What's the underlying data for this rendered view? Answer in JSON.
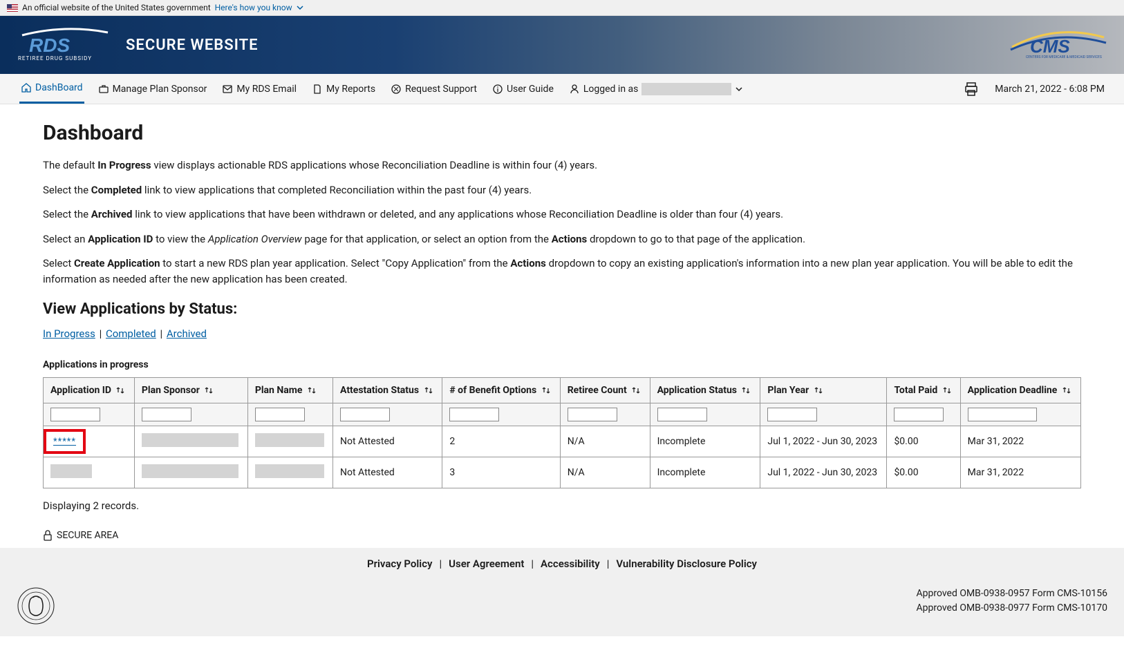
{
  "gov_banner": {
    "text": "An official website of the United States government",
    "link": "Here's how you know"
  },
  "header": {
    "logo_subtitle": "RETIREE DRUG SUBSIDY",
    "title": "SECURE WEBSITE"
  },
  "nav": {
    "items": [
      {
        "label": "DashBoard",
        "active": true
      },
      {
        "label": "Manage Plan Sponsor"
      },
      {
        "label": "My RDS Email"
      },
      {
        "label": "My Reports"
      },
      {
        "label": "Request Support"
      },
      {
        "label": "User Guide"
      }
    ],
    "logged_in_label": "Logged in as",
    "timestamp": "March 21, 2022 - 6:08 PM"
  },
  "dashboard": {
    "title": "Dashboard",
    "para1_a": "The default ",
    "para1_b": "In Progress",
    "para1_c": " view displays actionable RDS applications whose Reconciliation Deadline is within four (4) years.",
    "para2_a": "Select the ",
    "para2_b": "Completed",
    "para2_c": " link to view applications that completed Reconciliation within the past four (4) years.",
    "para3_a": "Select the ",
    "para3_b": "Archived",
    "para3_c": " link to view applications that have been withdrawn or deleted, and any applications whose Reconciliation Deadline is older than four (4) years.",
    "para4_a": "Select an ",
    "para4_b": "Application ID",
    "para4_c": " to view the ",
    "para4_d": "Application Overview",
    "para4_e": " page for that application, or select an option from the ",
    "para4_f": "Actions",
    "para4_g": " dropdown to go to that page of the application.",
    "para5_a": "Select ",
    "para5_b": "Create Application",
    "para5_c": " to start a new RDS plan year application. Select \"Copy Application\" from the ",
    "para5_d": "Actions",
    "para5_e": " dropdown to copy an existing application's information into a new plan year application. You will be able to edit the information as needed after the new application has been created.",
    "status_heading": "View Applications by Status:",
    "status_links": {
      "in_progress": "In Progress",
      "completed": "Completed",
      "archived": "Archived"
    },
    "table_caption": "Applications in progress",
    "columns": [
      "Application ID",
      "Plan Sponsor",
      "Plan Name",
      "Attestation Status",
      "# of Benefit Options",
      "Retiree Count",
      "Application Status",
      "Plan Year",
      "Total Paid",
      "Application Deadline"
    ],
    "filter_widths": [
      72,
      72,
      72,
      72,
      72,
      72,
      72,
      72,
      72,
      100
    ],
    "rows": [
      {
        "app_id_display": "*****",
        "highlighted": true,
        "sponsor_redacted_w": 140,
        "name_redacted_w": 100,
        "attestation": "Not Attested",
        "benefit_options": "2",
        "retiree_count": "N/A",
        "status": "Incomplete",
        "plan_year": "Jul 1, 2022 - Jun 30, 2023",
        "total_paid": "$0.00",
        "deadline": "Mar 31, 2022"
      },
      {
        "app_id_redacted_w": 60,
        "highlighted": false,
        "sponsor_redacted_w": 140,
        "name_redacted_w": 100,
        "attestation": "Not Attested",
        "benefit_options": "3",
        "retiree_count": "N/A",
        "status": "Incomplete",
        "plan_year": "Jul 1, 2022 - Jun 30, 2023",
        "total_paid": "$0.00",
        "deadline": "Mar 31, 2022"
      }
    ],
    "records_text": "Displaying 2 records.",
    "secure_area": "SECURE AREA"
  },
  "footer": {
    "links": [
      "Privacy Policy",
      "User Agreement",
      "Accessibility",
      "Vulnerability Disclosure Policy"
    ],
    "approval1": "Approved OMB-0938-0957 Form CMS-10156",
    "approval2": "Approved OMB-0938-0977 Form CMS-10170"
  },
  "colors": {
    "link": "#005ea2",
    "highlight": "#e30613",
    "header_dark": "#0a2e5c",
    "bg_gray": "#f0f0f0"
  }
}
